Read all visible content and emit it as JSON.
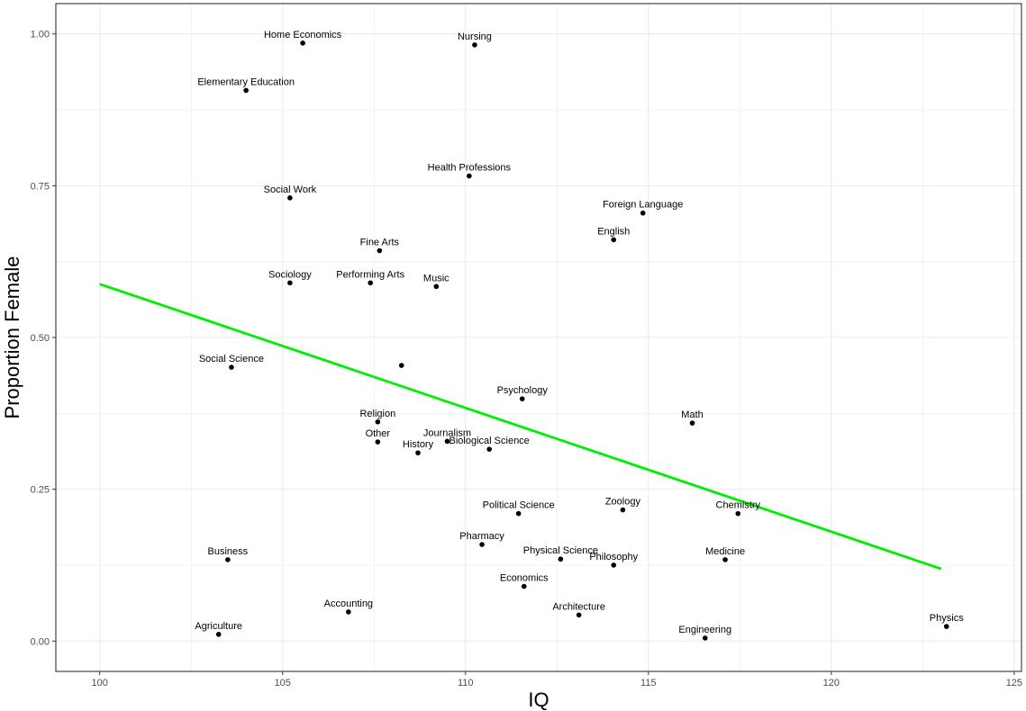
{
  "chart_data": {
    "type": "scatter",
    "title": "",
    "xlabel": "IQ",
    "ylabel": "Proportion Female",
    "xlim": [
      98.8,
      125.2
    ],
    "ylim": [
      -0.05,
      1.05
    ],
    "x_ticks": [
      100,
      105,
      110,
      115,
      120,
      125
    ],
    "y_ticks": [
      0.0,
      0.25,
      0.5,
      0.75,
      1.0
    ],
    "x_tick_labels": [
      "100",
      "105",
      "110",
      "115",
      "120",
      "125"
    ],
    "y_tick_labels": [
      "0.00",
      "0.25",
      "0.50",
      "0.75",
      "1.00"
    ],
    "grid": true,
    "points": [
      {
        "label": "Home Economics",
        "x": 105.55,
        "y": 0.985
      },
      {
        "label": "Nursing",
        "x": 110.25,
        "y": 0.982
      },
      {
        "label": "Elementary Education",
        "x": 104.0,
        "y": 0.907
      },
      {
        "label": "Health Professions",
        "x": 110.1,
        "y": 0.766
      },
      {
        "label": "Social Work",
        "x": 105.2,
        "y": 0.73
      },
      {
        "label": "Foreign Language",
        "x": 114.85,
        "y": 0.705
      },
      {
        "label": "English",
        "x": 114.05,
        "y": 0.661
      },
      {
        "label": "Fine Arts",
        "x": 107.65,
        "y": 0.643
      },
      {
        "label": "Sociology",
        "x": 105.2,
        "y": 0.59
      },
      {
        "label": "Performing Arts",
        "x": 107.4,
        "y": 0.59
      },
      {
        "label": "Music",
        "x": 109.2,
        "y": 0.584
      },
      {
        "label": "Social Science",
        "x": 103.6,
        "y": 0.451
      },
      {
        "label": "",
        "x": 108.25,
        "y": 0.454
      },
      {
        "label": "Psychology",
        "x": 111.55,
        "y": 0.399
      },
      {
        "label": "Religion",
        "x": 107.6,
        "y": 0.361
      },
      {
        "label": "Math",
        "x": 116.2,
        "y": 0.359
      },
      {
        "label": "Other",
        "x": 107.6,
        "y": 0.328
      },
      {
        "label": "Journalism",
        "x": 109.5,
        "y": 0.329
      },
      {
        "label": "Biological Science",
        "x": 110.65,
        "y": 0.316
      },
      {
        "label": "History",
        "x": 108.7,
        "y": 0.31
      },
      {
        "label": "Political Science",
        "x": 111.45,
        "y": 0.21
      },
      {
        "label": "Zoology",
        "x": 114.3,
        "y": 0.216
      },
      {
        "label": "Chemistry",
        "x": 117.45,
        "y": 0.21
      },
      {
        "label": "Pharmacy",
        "x": 110.45,
        "y": 0.159
      },
      {
        "label": "Physical Science",
        "x": 112.6,
        "y": 0.135
      },
      {
        "label": "Philosophy",
        "x": 114.05,
        "y": 0.125
      },
      {
        "label": "Medicine",
        "x": 117.1,
        "y": 0.134
      },
      {
        "label": "Business",
        "x": 103.5,
        "y": 0.134
      },
      {
        "label": "Economics",
        "x": 111.6,
        "y": 0.09
      },
      {
        "label": "Accounting",
        "x": 106.8,
        "y": 0.048
      },
      {
        "label": "Architecture",
        "x": 113.1,
        "y": 0.043
      },
      {
        "label": "Agriculture",
        "x": 103.25,
        "y": 0.011
      },
      {
        "label": "Engineering",
        "x": 116.55,
        "y": 0.005
      },
      {
        "label": "Physics",
        "x": 123.15,
        "y": 0.024
      }
    ],
    "fit_line": {
      "x": [
        100,
        123
      ],
      "y": [
        0.588,
        0.119
      ],
      "color": "#00ee00"
    },
    "colors": {
      "point": "#000000",
      "grid": "#ebebeb",
      "panel_border": "#333333"
    }
  }
}
